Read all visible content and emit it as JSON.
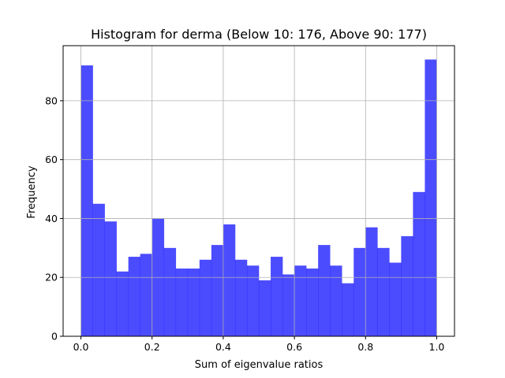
{
  "chart_data": {
    "type": "bar",
    "subtype": "histogram",
    "title": "Histogram for derma (Below 10: 176, Above 90: 177)",
    "xlabel": "Sum of eigenvalue ratios",
    "ylabel": "Frequency",
    "xlim": [
      -0.05,
      1.05
    ],
    "ylim": [
      0,
      98.7
    ],
    "grid": true,
    "bin_range": [
      0.0,
      1.0
    ],
    "bin_count": 30,
    "values": [
      92,
      45,
      39,
      22,
      27,
      28,
      40,
      30,
      23,
      23,
      26,
      31,
      38,
      26,
      24,
      19,
      27,
      21,
      24,
      23,
      31,
      24,
      18,
      30,
      37,
      30,
      25,
      34,
      49,
      94
    ],
    "x_ticks": [
      0.0,
      0.2,
      0.4,
      0.6,
      0.8,
      1.0
    ],
    "x_tick_labels": [
      "0.0",
      "0.2",
      "0.4",
      "0.6",
      "0.8",
      "1.0"
    ],
    "y_ticks": [
      0,
      20,
      40,
      60,
      80
    ],
    "y_tick_labels": [
      "0",
      "20",
      "40",
      "60",
      "80"
    ],
    "bar_color": "#0000ff",
    "bar_alpha": 0.7
  }
}
